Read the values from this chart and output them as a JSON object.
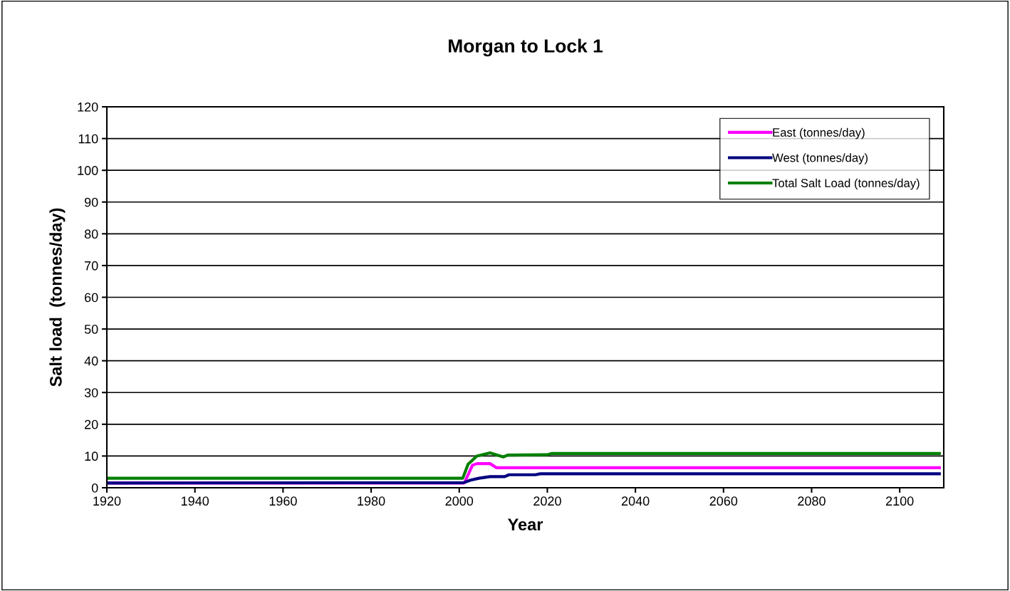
{
  "chart_data": {
    "type": "line",
    "title": "Morgan to Lock 1",
    "xlabel": "Year",
    "ylabel": "Salt load  (tonnes/day)",
    "xlim": [
      1920,
      2110
    ],
    "xticks": [
      1920,
      1940,
      1960,
      1980,
      2000,
      2020,
      2040,
      2060,
      2080,
      2100
    ],
    "ylim": [
      0,
      120
    ],
    "yticks": [
      0,
      10,
      20,
      30,
      40,
      50,
      60,
      70,
      80,
      90,
      100,
      110,
      120
    ],
    "grid": "y",
    "legend": "top right",
    "marker": "none",
    "line_style": "solid",
    "series": [
      {
        "name": "East (tonnes/day)",
        "color": "#ff00ff",
        "x": [
          1920,
          2001,
          2001.2,
          2003,
          2004,
          2007,
          2008.5,
          2109
        ],
        "values": [
          1.5,
          1.5,
          1.6,
          7.1,
          7.6,
          7.6,
          6.3,
          6.3
        ]
      },
      {
        "name": "West (tonnes/day)",
        "color": "#000080",
        "x": [
          1920,
          2001,
          2002.6,
          2004.5,
          2007,
          2010.3,
          2011.3,
          2017.3,
          2018.4,
          2109
        ],
        "values": [
          1.5,
          1.6,
          2.4,
          3.0,
          3.5,
          3.5,
          4.1,
          4.1,
          4.4,
          4.4
        ]
      },
      {
        "name": "Total Salt Load (tonnes/day)",
        "color": "#008000",
        "x": [
          1920,
          2000.8,
          2002,
          2004,
          2007,
          2010,
          2011,
          2020,
          2021,
          2109
        ],
        "values": [
          3.0,
          3.0,
          7.4,
          10.0,
          11.0,
          9.7,
          10.3,
          10.4,
          10.8,
          10.8
        ]
      }
    ]
  }
}
